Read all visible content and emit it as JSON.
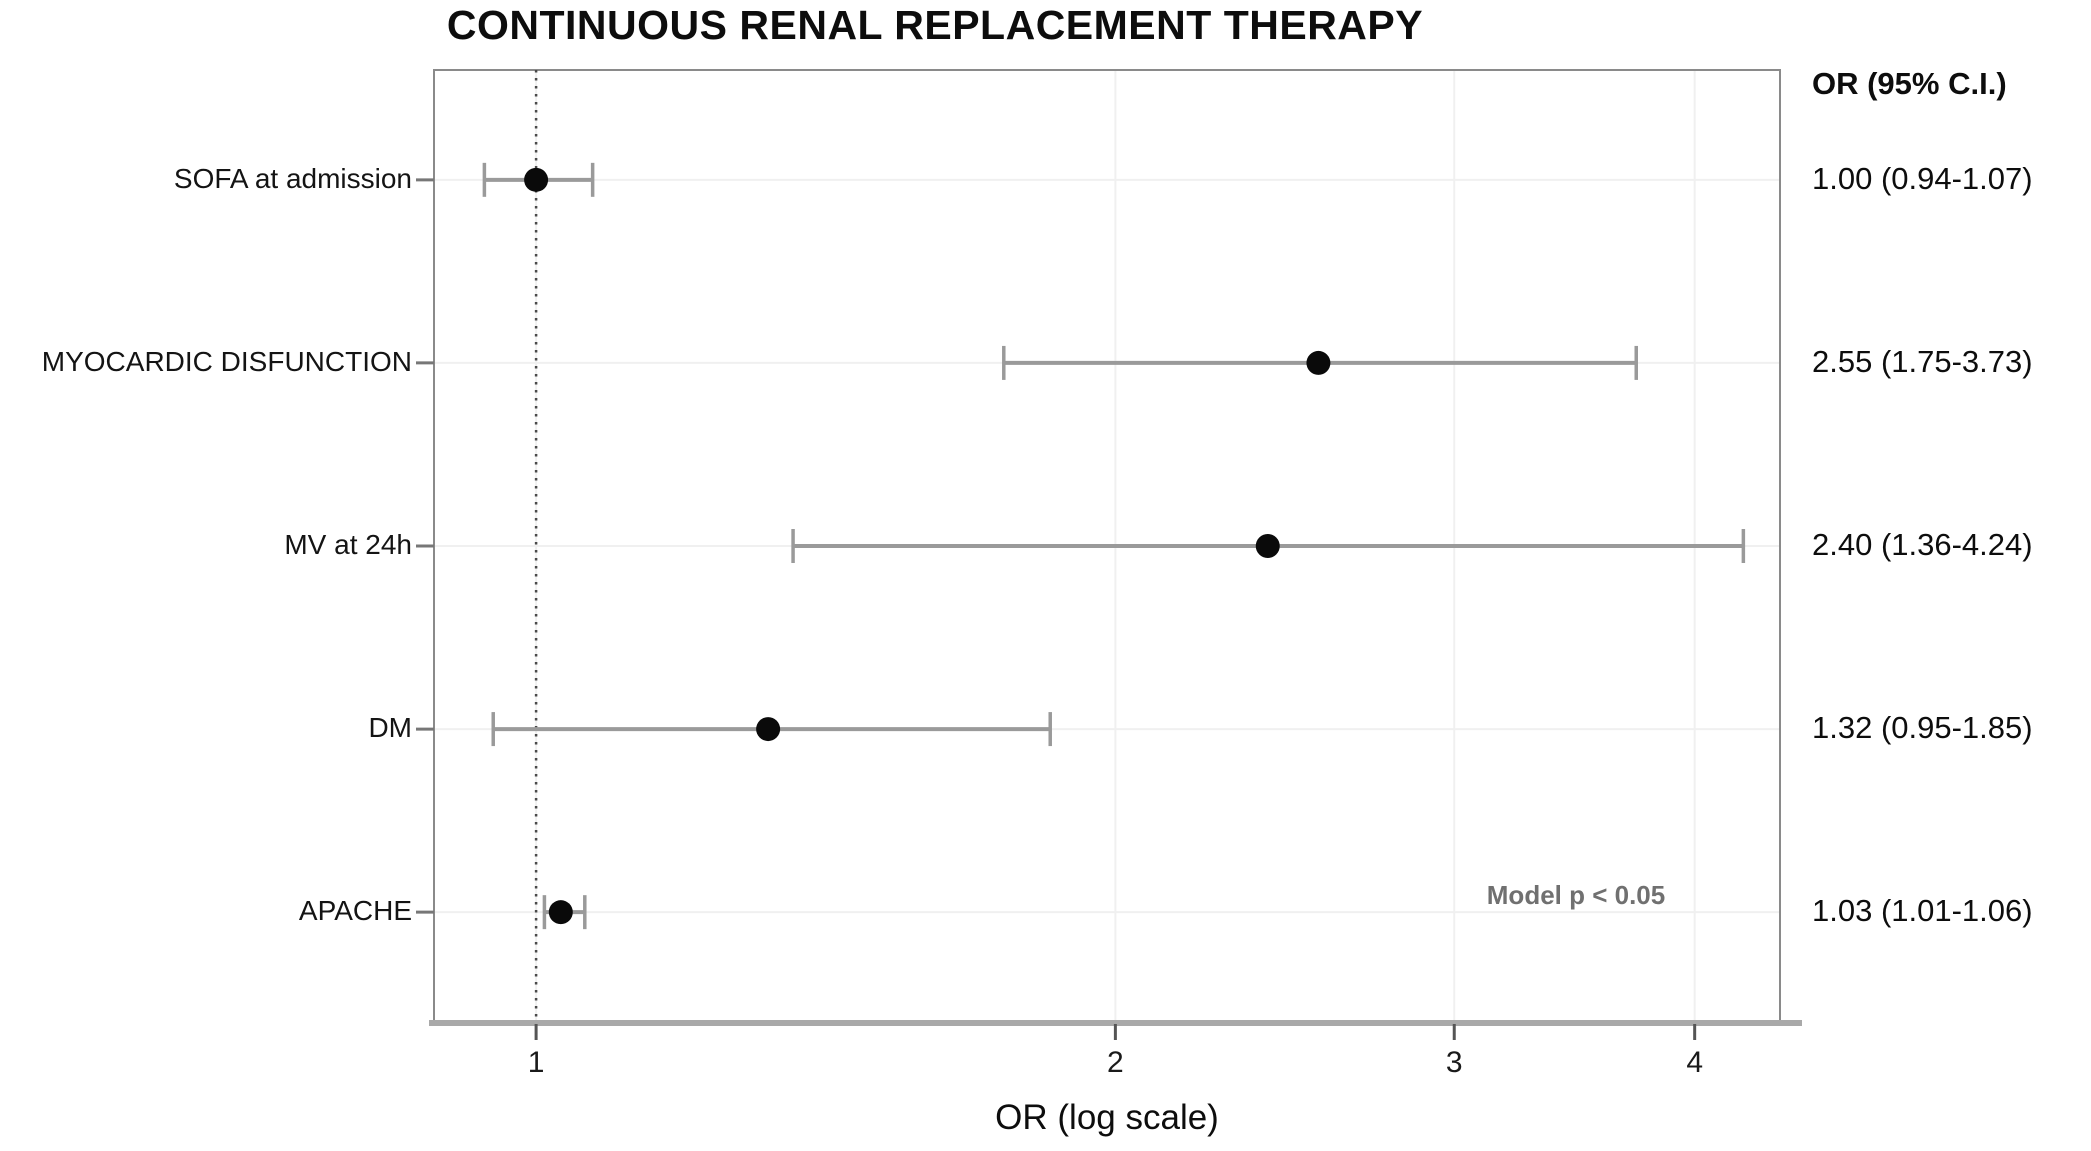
{
  "chart_data": {
    "type": "scatter",
    "subtype": "forest-plot",
    "title": "CONTINUOUS RENAL REPLACEMENT THERAPY",
    "xlabel": "OR (log scale)",
    "x_scale": "log",
    "x_ticks": [
      1,
      2,
      3,
      4
    ],
    "xlim": [
      0.885,
      4.43
    ],
    "reference_line_x": 1,
    "value_column_header": "OR (95% C.I.)",
    "annotation": "Model p < 0.05",
    "grid": "on",
    "rows": [
      {
        "label": "SOFA at admission",
        "or": 1.0,
        "ci_low": 0.94,
        "ci_high": 1.07,
        "display": "1.00 (0.94-1.07)"
      },
      {
        "label": "MYOCARDIC DISFUNCTION",
        "or": 2.55,
        "ci_low": 1.75,
        "ci_high": 3.73,
        "display": "2.55 (1.75-3.73)"
      },
      {
        "label": "MV at 24h",
        "or": 2.4,
        "ci_low": 1.36,
        "ci_high": 4.24,
        "display": "2.40 (1.36-4.24)"
      },
      {
        "label": "DM",
        "or": 1.32,
        "ci_low": 0.95,
        "ci_high": 1.85,
        "display": "1.32 (0.95-1.85)"
      },
      {
        "label": "APACHE",
        "or": 1.03,
        "ci_low": 1.01,
        "ci_high": 1.06,
        "display": "1.03 (1.01-1.06)"
      }
    ],
    "colors": {
      "point": "#0a0a0a",
      "ci": "#9a9a9a",
      "grid": "#f0f0f0",
      "axis": "#a9a9a9",
      "border": "#8a8a8a",
      "reference": "#4a4a4a",
      "tick": "#555555",
      "annotation": "#707070",
      "text": "#0d0d0d"
    }
  }
}
